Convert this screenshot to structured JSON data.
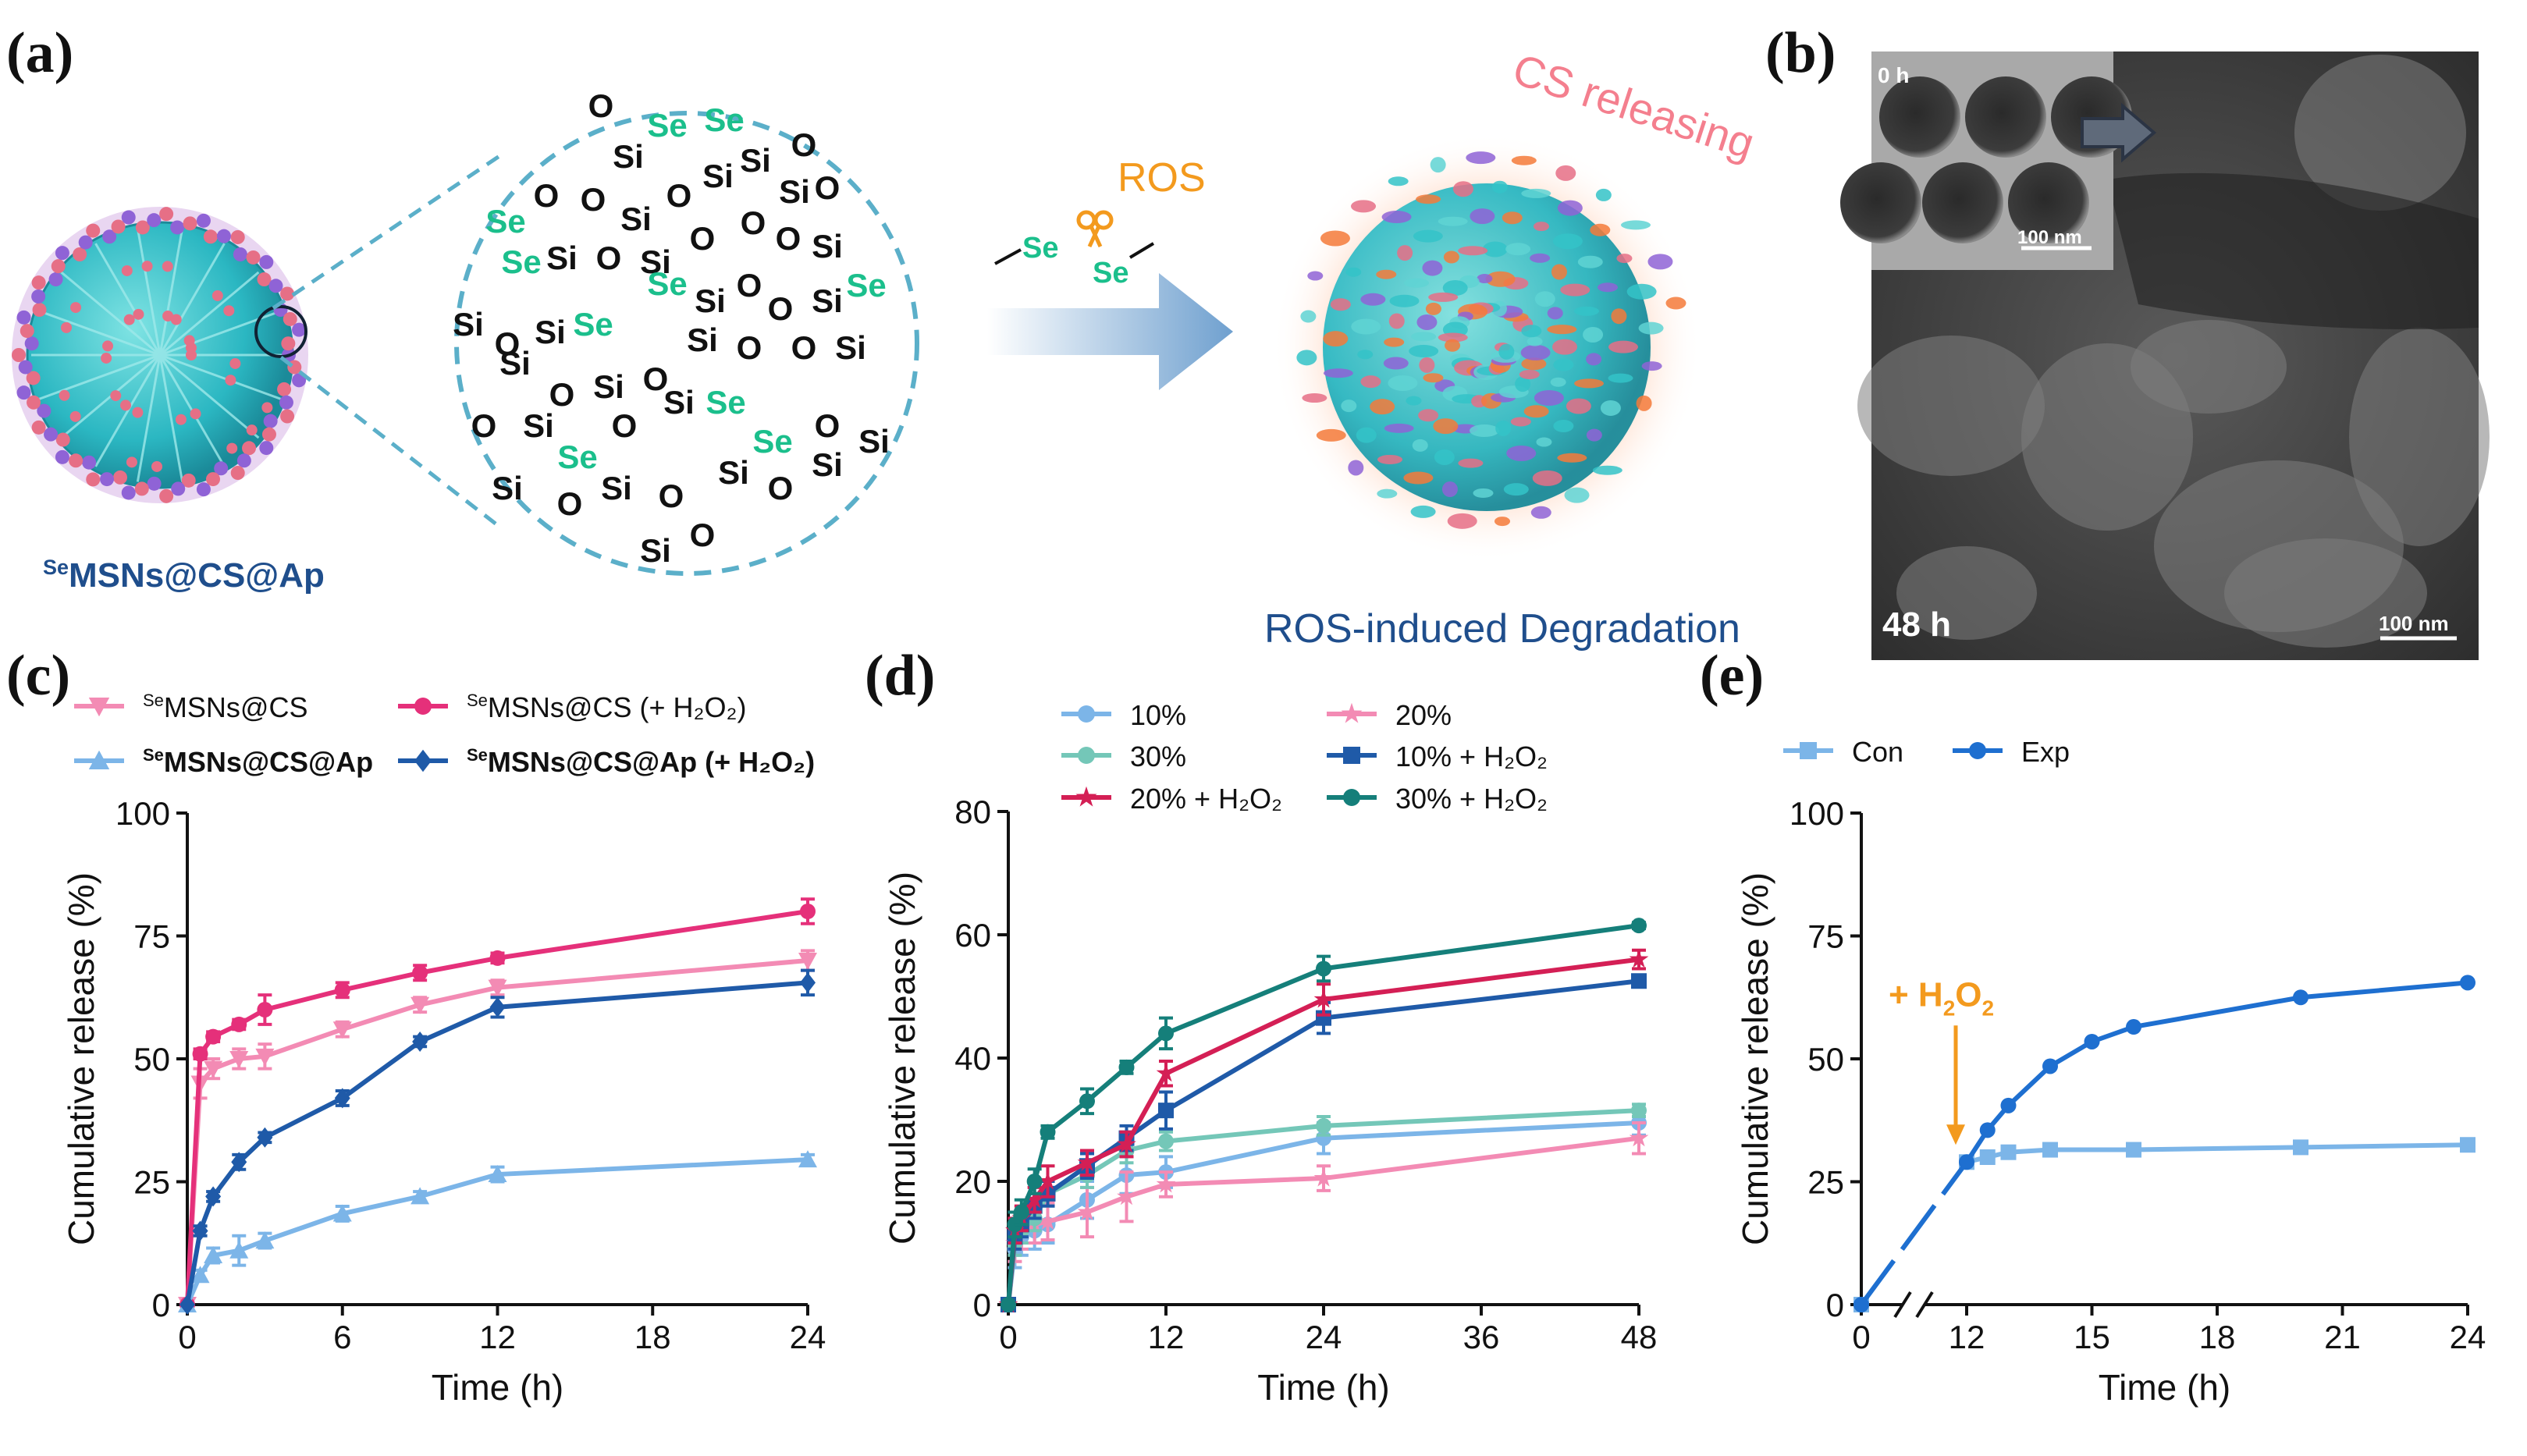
{
  "colors": {
    "pink_light": "#F38BB4",
    "magenta": "#E5307A",
    "light_blue": "#7CB5E8",
    "navy": "#1F5AA8",
    "teal_light": "#74C7B8",
    "crimson": "#D41F55",
    "dark_teal": "#157F7A",
    "dashed_blue": "#5BAFC9",
    "se_green": "#1BBF8C",
    "arrow_orange": "#F39A1E",
    "label_navy": "#1F4E8C"
  },
  "panel_a": {
    "label": "(a)",
    "particle_label_sup": "Se",
    "particle_label": "MSNs@CS@Ap",
    "ros_label": "ROS",
    "cs_releasing": "CS releasing",
    "degradation_label": "ROS-induced Degradation",
    "se_atom": "Se",
    "si_atom": "Si",
    "o_atom": "O"
  },
  "panel_b": {
    "label": "(b)",
    "inset_time": "0 h",
    "inset_scale": "100 nm",
    "main_time": "48 h",
    "main_scale": "100 nm"
  },
  "chart_data": [
    {
      "panel": "(c)",
      "type": "line",
      "xlabel": "Time (h)",
      "ylabel": "Cumulative release (%)",
      "xlim": [
        0,
        24
      ],
      "ylim": [
        0,
        100
      ],
      "xticks": [
        "0",
        "6",
        "12",
        "18",
        "24"
      ],
      "yticks": [
        "0",
        "25",
        "50",
        "75",
        "100"
      ],
      "legend_placement": "top",
      "series": [
        {
          "name_sup": "Se",
          "name": "MSNs@CS",
          "marker": "triangle-down",
          "color": "#F38BB4",
          "bold": false,
          "x": [
            0,
            0.5,
            1,
            2,
            3,
            6,
            9,
            12,
            24
          ],
          "y": [
            0,
            45,
            48,
            50,
            50.5,
            56,
            61,
            64.5,
            70
          ],
          "err": [
            0,
            3,
            2,
            2,
            2.5,
            1.5,
            1.5,
            1.5,
            2
          ]
        },
        {
          "name_sup": "Se",
          "name": "MSNs@CS (+ H₂O₂)",
          "marker": "circle",
          "color": "#E5307A",
          "bold": false,
          "x": [
            0,
            0.5,
            1,
            2,
            3,
            6,
            9,
            12,
            24
          ],
          "y": [
            0,
            51,
            54.5,
            57,
            60,
            64,
            67.5,
            70.5,
            80
          ],
          "err": [
            0,
            1,
            1,
            1,
            3,
            1.5,
            1.5,
            1,
            2.5
          ]
        },
        {
          "name_sup": "Se",
          "name": "MSNs@CS@Ap",
          "marker": "triangle-up",
          "color": "#7CB5E8",
          "bold": true,
          "x": [
            0,
            0.5,
            1,
            2,
            3,
            6,
            9,
            12,
            24
          ],
          "y": [
            0,
            6,
            10,
            11,
            13,
            18.5,
            22,
            26.5,
            29.5
          ],
          "err": [
            0,
            1,
            1.5,
            3,
            1.5,
            1.5,
            1,
            1.5,
            1
          ]
        },
        {
          "name_sup": "Se",
          "name": "MSNs@CS@Ap (+ H₂O₂)",
          "marker": "diamond",
          "color": "#1F5AA8",
          "bold": true,
          "x": [
            0,
            0.5,
            1,
            2,
            3,
            6,
            9,
            12,
            24
          ],
          "y": [
            0,
            15,
            22,
            29,
            34,
            42,
            53.5,
            60.5,
            65.5
          ],
          "err": [
            0,
            1,
            1,
            1.5,
            1,
            1.5,
            1,
            2,
            2.5
          ]
        }
      ]
    },
    {
      "panel": "(d)",
      "type": "line",
      "xlabel": "Time (h)",
      "ylabel": "Cumulative release (%)",
      "xlim": [
        0,
        48
      ],
      "ylim": [
        0,
        80
      ],
      "xticks": [
        "0",
        "12",
        "24",
        "36",
        "48"
      ],
      "yticks": [
        "0",
        "20",
        "40",
        "60",
        "80"
      ],
      "legend_placement": "top",
      "series": [
        {
          "name": "10%",
          "marker": "circle",
          "color": "#7CB5E8",
          "x": [
            0,
            0.5,
            1,
            2,
            3,
            6,
            9,
            12,
            24,
            48
          ],
          "y": [
            0,
            9,
            11,
            12,
            13,
            17,
            21,
            21.5,
            27,
            29.5
          ],
          "err": [
            0,
            3,
            3,
            3,
            3,
            3,
            3,
            2.5,
            2.5,
            2
          ]
        },
        {
          "name": "20%",
          "marker": "star",
          "color": "#F38BB4",
          "x": [
            0,
            0.5,
            1,
            2,
            3,
            6,
            9,
            12,
            24,
            48
          ],
          "y": [
            0,
            10,
            12,
            13,
            13.5,
            15,
            17.5,
            19.5,
            20.5,
            27
          ],
          "err": [
            0,
            3,
            3,
            3,
            3,
            4,
            4,
            2,
            2,
            2.5
          ]
        },
        {
          "name": "30%",
          "marker": "circle",
          "color": "#74C7B8",
          "x": [
            0,
            0.5,
            1,
            2,
            3,
            6,
            9,
            12,
            24,
            48
          ],
          "y": [
            0,
            10,
            12,
            14,
            18,
            21,
            25,
            26.5,
            29,
            31.5
          ],
          "err": [
            0,
            2,
            2,
            2,
            2,
            2,
            2,
            1.5,
            1.5,
            1
          ]
        },
        {
          "name": "10% + H₂O₂",
          "marker": "square",
          "color": "#1F5AA8",
          "x": [
            0,
            0.5,
            1,
            2,
            3,
            6,
            9,
            12,
            24,
            48
          ],
          "y": [
            0,
            11,
            13,
            16,
            18,
            22.5,
            27,
            31.5,
            46.5,
            52.5
          ],
          "err": [
            0,
            2,
            2,
            2,
            2,
            2,
            2,
            3,
            2.5,
            0.8
          ]
        },
        {
          "name": "20% + H₂O₂",
          "marker": "star",
          "color": "#D41F55",
          "x": [
            0,
            0.5,
            1,
            2,
            3,
            6,
            9,
            12,
            24,
            48
          ],
          "y": [
            0,
            12,
            14,
            17,
            20,
            23,
            26,
            37.5,
            49.5,
            56
          ],
          "err": [
            0,
            2,
            2,
            2,
            2.5,
            2,
            2,
            2,
            2.5,
            1.5
          ]
        },
        {
          "name": "30% + H₂O₂",
          "marker": "circle",
          "color": "#157F7A",
          "x": [
            0,
            0.5,
            1,
            2,
            3,
            6,
            9,
            12,
            24,
            48
          ],
          "y": [
            0,
            13,
            15,
            20,
            28,
            33,
            38.5,
            44,
            54.5,
            61.5
          ],
          "err": [
            0,
            2,
            2,
            2,
            1,
            2,
            1,
            2.5,
            2,
            0.5
          ]
        }
      ]
    },
    {
      "panel": "(e)",
      "type": "line",
      "xlabel": "Time (h)",
      "ylabel": "Cumulative release (%)",
      "xlim": [
        0,
        24
      ],
      "ylim": [
        0,
        100
      ],
      "xticks": [
        "0",
        "12",
        "15",
        "18",
        "21",
        "24"
      ],
      "yticks": [
        "0",
        "25",
        "50",
        "75",
        "100"
      ],
      "axis_break": "between 0 and 12",
      "legend_placement": "top",
      "annotation": {
        "text_prefix": "+ H",
        "text_sub1": "2",
        "text_mid": "O",
        "text_sub2": "2",
        "x": 12,
        "y": 29
      },
      "series": [
        {
          "name": "Con",
          "marker": "square",
          "color": "#7CB5E8",
          "x": [
            0,
            12,
            12.5,
            13,
            14,
            16,
            20,
            24
          ],
          "y": [
            0,
            29,
            30,
            31,
            31.5,
            31.5,
            32,
            32.5
          ]
        },
        {
          "name": "Exp",
          "marker": "circle",
          "color": "#1E6FD0",
          "x": [
            0,
            12,
            12.5,
            13,
            14,
            15,
            16,
            20,
            24
          ],
          "y": [
            0,
            29,
            35.5,
            40.5,
            48.5,
            53.5,
            56.5,
            62.5,
            65.5
          ]
        }
      ]
    }
  ]
}
